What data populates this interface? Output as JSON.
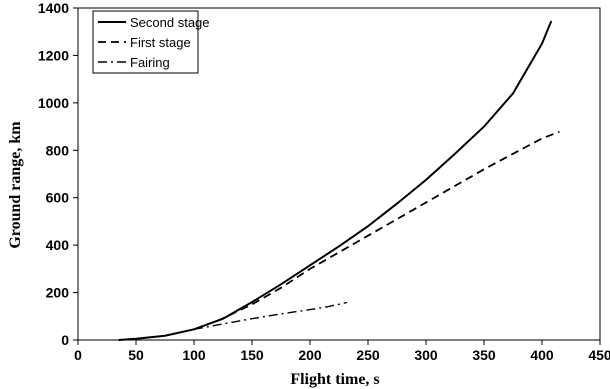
{
  "chart_data": {
    "type": "line",
    "title": "",
    "xlabel": "Flight time, s",
    "ylabel": "Ground range, km",
    "xlim": [
      0,
      450
    ],
    "ylim": [
      0,
      1400
    ],
    "x_ticks": [
      0,
      50,
      100,
      150,
      200,
      250,
      300,
      350,
      400,
      450
    ],
    "y_ticks": [
      0,
      200,
      400,
      600,
      800,
      1000,
      1200,
      1400
    ],
    "grid": false,
    "legend_position": "top-left",
    "series": [
      {
        "name": "Second stage",
        "style": "solid",
        "x": [
          35,
          50,
          75,
          100,
          125,
          150,
          175,
          200,
          225,
          250,
          275,
          300,
          325,
          350,
          375,
          400,
          408
        ],
        "y": [
          0,
          5,
          18,
          45,
          90,
          160,
          235,
          315,
          395,
          480,
          575,
          675,
          785,
          900,
          1040,
          1250,
          1345
        ]
      },
      {
        "name": "First stage",
        "style": "dashed",
        "x": [
          120,
          150,
          175,
          200,
          225,
          250,
          275,
          300,
          325,
          350,
          375,
          400,
          415
        ],
        "y": [
          80,
          150,
          220,
          300,
          370,
          440,
          510,
          580,
          650,
          720,
          785,
          850,
          878
        ]
      },
      {
        "name": "Fairing",
        "style": "dashdot",
        "x": [
          100,
          125,
          150,
          175,
          200,
          215,
          232
        ],
        "y": [
          45,
          68,
          90,
          110,
          128,
          140,
          158
        ]
      }
    ]
  }
}
